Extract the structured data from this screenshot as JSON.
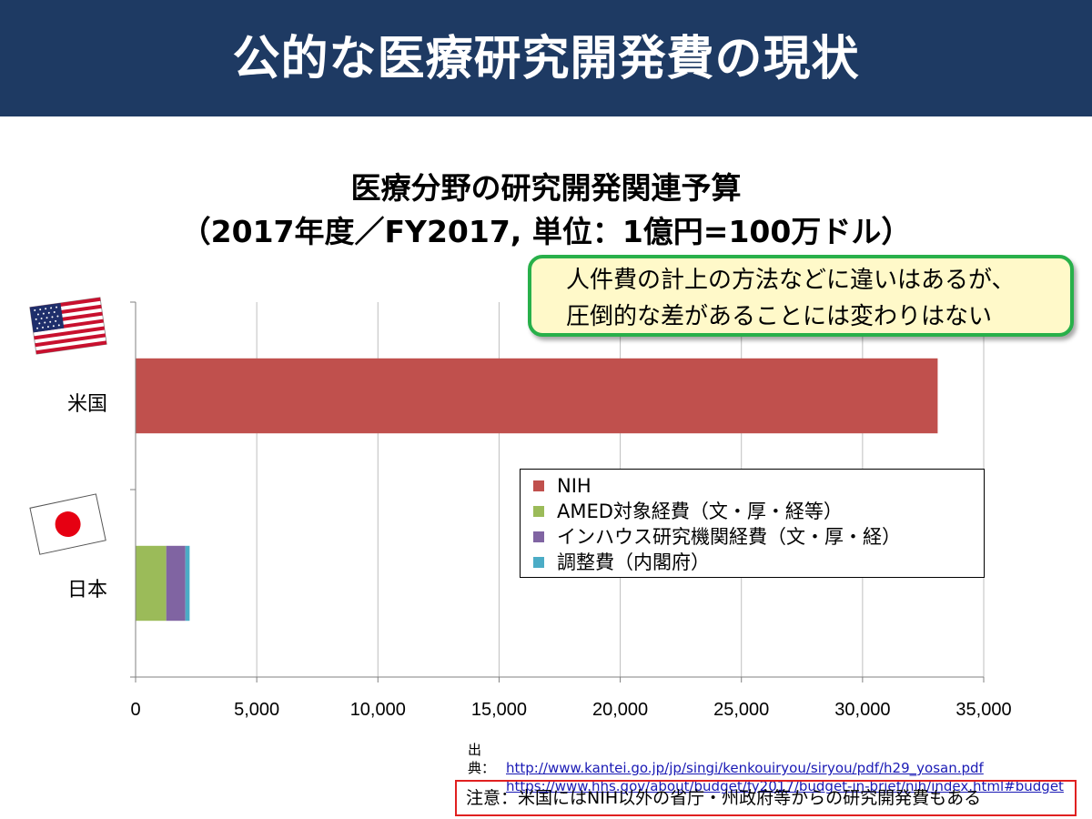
{
  "header": {
    "title": "公的な医療研究開発費の現状"
  },
  "chart_title_line1": "医療分野の研究開発関連予算",
  "chart_title_line2": "（2017年度／FY2017, 単位：1億円=100万ドル）",
  "callout": {
    "line1": "人件費の計上の方法などに違いはあるが、",
    "line2": "圧倒的な差があることには変わりはない"
  },
  "chart_data": {
    "type": "bar",
    "orientation": "horizontal",
    "stacked": true,
    "categories": [
      "米国",
      "日本"
    ],
    "series": [
      {
        "name": "NIH",
        "color": "#c0504d",
        "values": [
          33100,
          0
        ]
      },
      {
        "name": "AMED対象経費（文・厚・経等）",
        "color": "#9bbb59",
        "values": [
          0,
          1265
        ]
      },
      {
        "name": "インハウス研究機関経費（文・厚・経）",
        "color": "#8064a2",
        "values": [
          0,
          790
        ]
      },
      {
        "name": "調整費（内閣府）",
        "color": "#4bacc6",
        "values": [
          0,
          175
        ]
      }
    ],
    "xlim": [
      0,
      35000
    ],
    "xticks": [
      "0",
      "5,000",
      "10,000",
      "15,000",
      "20,000",
      "25,000",
      "30,000",
      "35,000"
    ],
    "grid": true,
    "legend_position": "right-middle"
  },
  "flags": {
    "us": "us-flag",
    "jp": "japan-flag"
  },
  "source": {
    "label": "出典：",
    "url1": "http://www.kantei.go.jp/jp/singi/kenkouiryou/siryou/pdf/h29_yosan.pdf",
    "url2": "https://www.hhs.gov/about/budget/fy2017/budget-in-brief/nih/index.html#budget"
  },
  "note": "注意：米国にはNIH以外の省庁・州政府等からの研究開発費もある"
}
